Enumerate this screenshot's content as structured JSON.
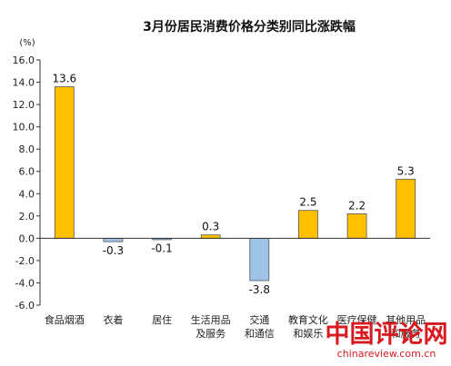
{
  "chart_data": {
    "type": "bar",
    "title": "3月份居民消费价格分类别同比涨跌幅",
    "unit_label": "(%)",
    "categories": [
      [
        "食品烟酒"
      ],
      [
        "衣着"
      ],
      [
        "居住"
      ],
      [
        "生活用品",
        "及服务"
      ],
      [
        "交通",
        "和通信"
      ],
      [
        "教育文化",
        "和娱乐"
      ],
      [
        "医疗保健"
      ],
      [
        "其他用品",
        "和服务"
      ]
    ],
    "values": [
      13.6,
      -0.3,
      -0.1,
      0.3,
      -3.8,
      2.5,
      2.2,
      5.3
    ],
    "data_labels": [
      "13.6",
      "-0.3",
      "-0.1",
      "0.3",
      "-3.8",
      "2.5",
      "2.2",
      "5.3"
    ],
    "ylim": [
      -6.0,
      16.0
    ],
    "yticks": [
      "-6.0",
      "-4.0",
      "-2.0",
      "0.0",
      "2.0",
      "4.0",
      "6.0",
      "8.0",
      "10.0",
      "12.0",
      "14.0",
      "16.0"
    ],
    "positive_color": "#FFC000",
    "negative_color": "#9DC3E6",
    "bar_edge_color": "#555555",
    "grid": false,
    "legend": "none"
  },
  "watermark": {
    "main": "中国评论网",
    "url": "chinareview.com.cn",
    "color": "#d71920"
  }
}
